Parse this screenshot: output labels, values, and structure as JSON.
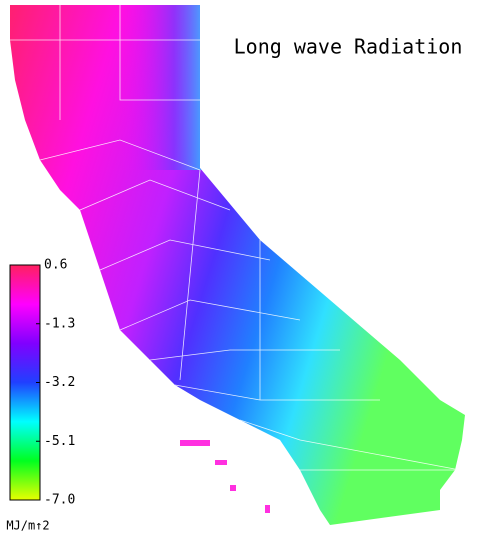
{
  "map": {
    "title": "Long wave Radiation",
    "colorbar": {
      "unit": "MJ/m↑2",
      "lim": [
        {
          "value": -7.0,
          "label": "-7.0"
        },
        0.6
      ],
      "ticks": [
        0.6,
        -1.3,
        -3.2,
        -5.1,
        {
          "value": -7.0,
          "label": "-7.0"
        }
      ],
      "colors": [
        "#e8ff00",
        "#00ff20",
        "#00ffff",
        "#2040ff",
        "#8000ff",
        "#ff00ff",
        "#ff2060"
      ]
    }
  }
}
